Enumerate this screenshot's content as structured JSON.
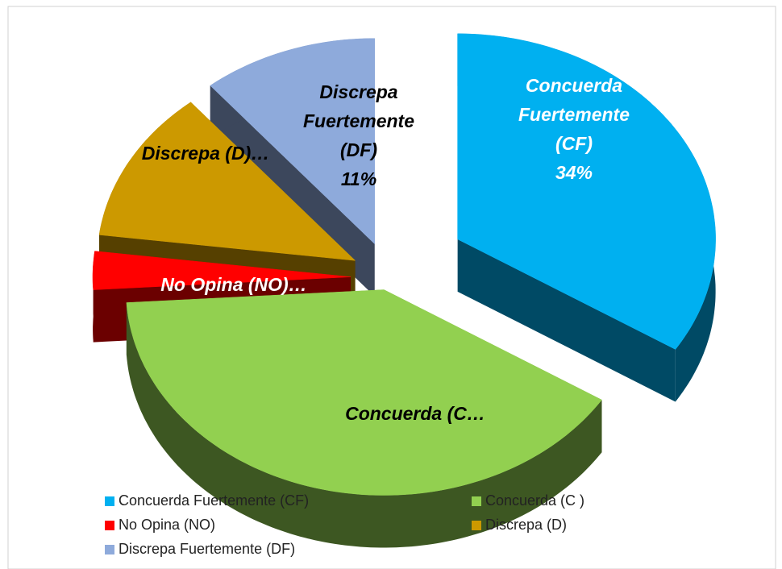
{
  "chart_data": {
    "type": "pie",
    "categories": [
      "Concuerda Fuertemente (CF)",
      "Concuerda (C )",
      "No Opina (NO)",
      "Discrepa (D)",
      "Discrepa Fuertemente (DF)"
    ],
    "values": [
      34,
      40,
      3,
      12,
      11
    ],
    "colors": [
      "#00b0f0",
      "#92d050",
      "#ff0000",
      "#cc9900",
      "#8eaadb"
    ],
    "data_labels": [
      [
        "Concuerda",
        "Fuertemente",
        "(CF)",
        "34%"
      ],
      [
        "Concuerda (C…"
      ],
      [
        "No Opina (NO)…"
      ],
      [
        "Discrepa (D)…"
      ],
      [
        "Discrepa",
        "Fuertemente",
        "(DF)",
        "11%"
      ]
    ],
    "legend": "bottom"
  }
}
